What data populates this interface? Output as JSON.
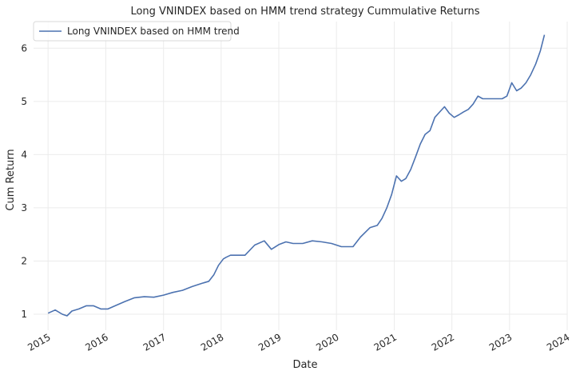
{
  "chart_data": {
    "type": "line",
    "title": "Long VNINDEX based on HMM trend strategy Cummulative Returns",
    "xlabel": "Date",
    "ylabel": "Cum Return",
    "xlim": [
      "2014-10-01",
      "2024-01-01"
    ],
    "ylim": [
      0.7,
      6.5
    ],
    "grid": true,
    "legend_position": "top-left",
    "x_ticks": [
      "2015-01-01",
      "2016-01-01",
      "2017-01-01",
      "2018-01-01",
      "2019-01-01",
      "2020-01-01",
      "2021-01-01",
      "2022-01-01",
      "2023-01-01",
      "2024-01-01"
    ],
    "x_tick_labels": [
      "2015",
      "2016",
      "2017",
      "2018",
      "2019",
      "2020",
      "2021",
      "2022",
      "2023",
      "2024"
    ],
    "y_ticks": [
      1,
      2,
      3,
      4,
      5,
      6
    ],
    "y_tick_labels": [
      "1",
      "2",
      "3",
      "4",
      "5",
      "6"
    ],
    "colors": {
      "series": "#4c72b0",
      "grid": "#ebebeb",
      "text": "#262626"
    },
    "series": [
      {
        "name": "Long VNINDEX based on HMM trend",
        "x": [
          "2015-01-01",
          "2015-02-15",
          "2015-04-01",
          "2015-05-01",
          "2015-06-01",
          "2015-07-15",
          "2015-09-01",
          "2015-10-15",
          "2015-12-01",
          "2016-01-15",
          "2016-03-01",
          "2016-05-01",
          "2016-07-01",
          "2016-09-01",
          "2016-11-01",
          "2017-01-01",
          "2017-03-01",
          "2017-05-01",
          "2017-07-01",
          "2017-09-01",
          "2017-10-15",
          "2017-11-15",
          "2017-12-15",
          "2018-01-15",
          "2018-02-01",
          "2018-03-01",
          "2018-04-15",
          "2018-06-01",
          "2018-08-01",
          "2018-10-01",
          "2018-11-15",
          "2019-01-01",
          "2019-02-15",
          "2019-04-01",
          "2019-06-01",
          "2019-08-01",
          "2019-10-01",
          "2019-12-01",
          "2020-02-01",
          "2020-04-15",
          "2020-06-01",
          "2020-08-01",
          "2020-09-15",
          "2020-10-15",
          "2020-11-15",
          "2020-12-15",
          "2021-01-15",
          "2021-02-15",
          "2021-03-15",
          "2021-04-15",
          "2021-05-15",
          "2021-06-15",
          "2021-07-15",
          "2021-08-15",
          "2021-09-15",
          "2021-10-15",
          "2021-11-15",
          "2021-12-15",
          "2022-01-15",
          "2022-02-15",
          "2022-03-15",
          "2022-04-15",
          "2022-05-15",
          "2022-06-15",
          "2022-07-15",
          "2022-08-15",
          "2022-09-15",
          "2022-10-15",
          "2022-11-15",
          "2022-12-15",
          "2023-01-15",
          "2023-02-15",
          "2023-03-15",
          "2023-04-15",
          "2023-05-15",
          "2023-06-15",
          "2023-07-15",
          "2023-08-10"
        ],
        "values": [
          1.02,
          1.08,
          1.0,
          0.97,
          1.06,
          1.1,
          1.16,
          1.16,
          1.1,
          1.1,
          1.16,
          1.24,
          1.31,
          1.33,
          1.32,
          1.36,
          1.41,
          1.45,
          1.52,
          1.58,
          1.62,
          1.74,
          1.92,
          2.04,
          2.07,
          2.11,
          2.11,
          2.11,
          2.3,
          2.38,
          2.22,
          2.31,
          2.36,
          2.33,
          2.33,
          2.38,
          2.36,
          2.33,
          2.27,
          2.27,
          2.45,
          2.63,
          2.67,
          2.8,
          3.0,
          3.25,
          3.6,
          3.5,
          3.55,
          3.72,
          3.95,
          4.2,
          4.38,
          4.45,
          4.7,
          4.8,
          4.9,
          4.78,
          4.7,
          4.75,
          4.8,
          4.85,
          4.95,
          5.1,
          5.05,
          5.05,
          5.05,
          5.05,
          5.05,
          5.1,
          5.35,
          5.2,
          5.25,
          5.35,
          5.5,
          5.7,
          5.95,
          6.25
        ]
      }
    ]
  }
}
